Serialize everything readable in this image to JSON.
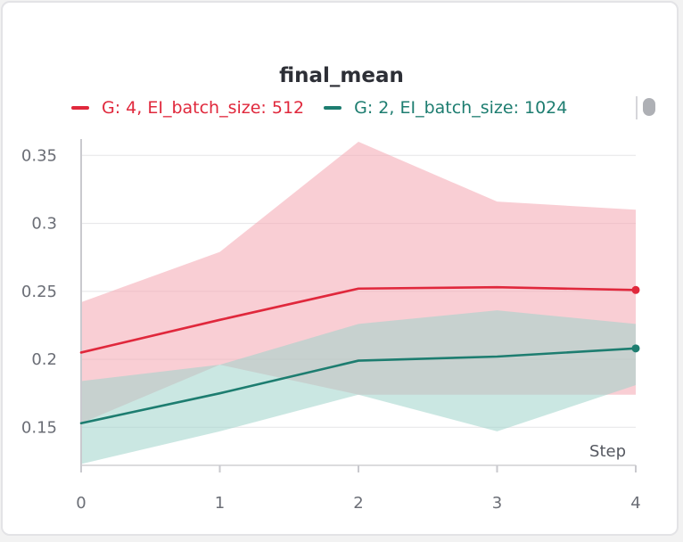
{
  "chart_data": {
    "type": "line",
    "title": "final_mean",
    "xlabel": "Step",
    "ylabel": "",
    "x": [
      0,
      1,
      2,
      3,
      4
    ],
    "xlim": [
      0,
      4
    ],
    "ylim": [
      0.122,
      0.362
    ],
    "x_ticks": [
      "0",
      "1",
      "2",
      "3",
      "4"
    ],
    "y_ticks": [
      {
        "value": 0.15,
        "label": "0.15"
      },
      {
        "value": 0.2,
        "label": "0.2"
      },
      {
        "value": 0.25,
        "label": "0.25"
      },
      {
        "value": 0.3,
        "label": "0.3"
      },
      {
        "value": 0.35,
        "label": "0.35"
      }
    ],
    "grid": true,
    "legend_position": "top",
    "series": [
      {
        "name": "G: 4, EI_batch_size: 512",
        "color": "#e0283c",
        "band_color": "#f4a6b0",
        "values": [
          0.205,
          0.229,
          0.252,
          0.253,
          0.251
        ],
        "upper": [
          0.242,
          0.279,
          0.36,
          0.316,
          0.31
        ],
        "lower": [
          0.153,
          0.196,
          0.174,
          0.174,
          0.174
        ]
      },
      {
        "name": "G: 2, EI_batch_size: 1024",
        "color": "#1d7d70",
        "band_color": "#9ed4cb",
        "values": [
          0.153,
          0.175,
          0.199,
          0.202,
          0.208
        ],
        "upper": [
          0.184,
          0.196,
          0.226,
          0.236,
          0.226
        ],
        "lower": [
          0.123,
          0.147,
          0.174,
          0.147,
          0.181
        ]
      }
    ]
  }
}
